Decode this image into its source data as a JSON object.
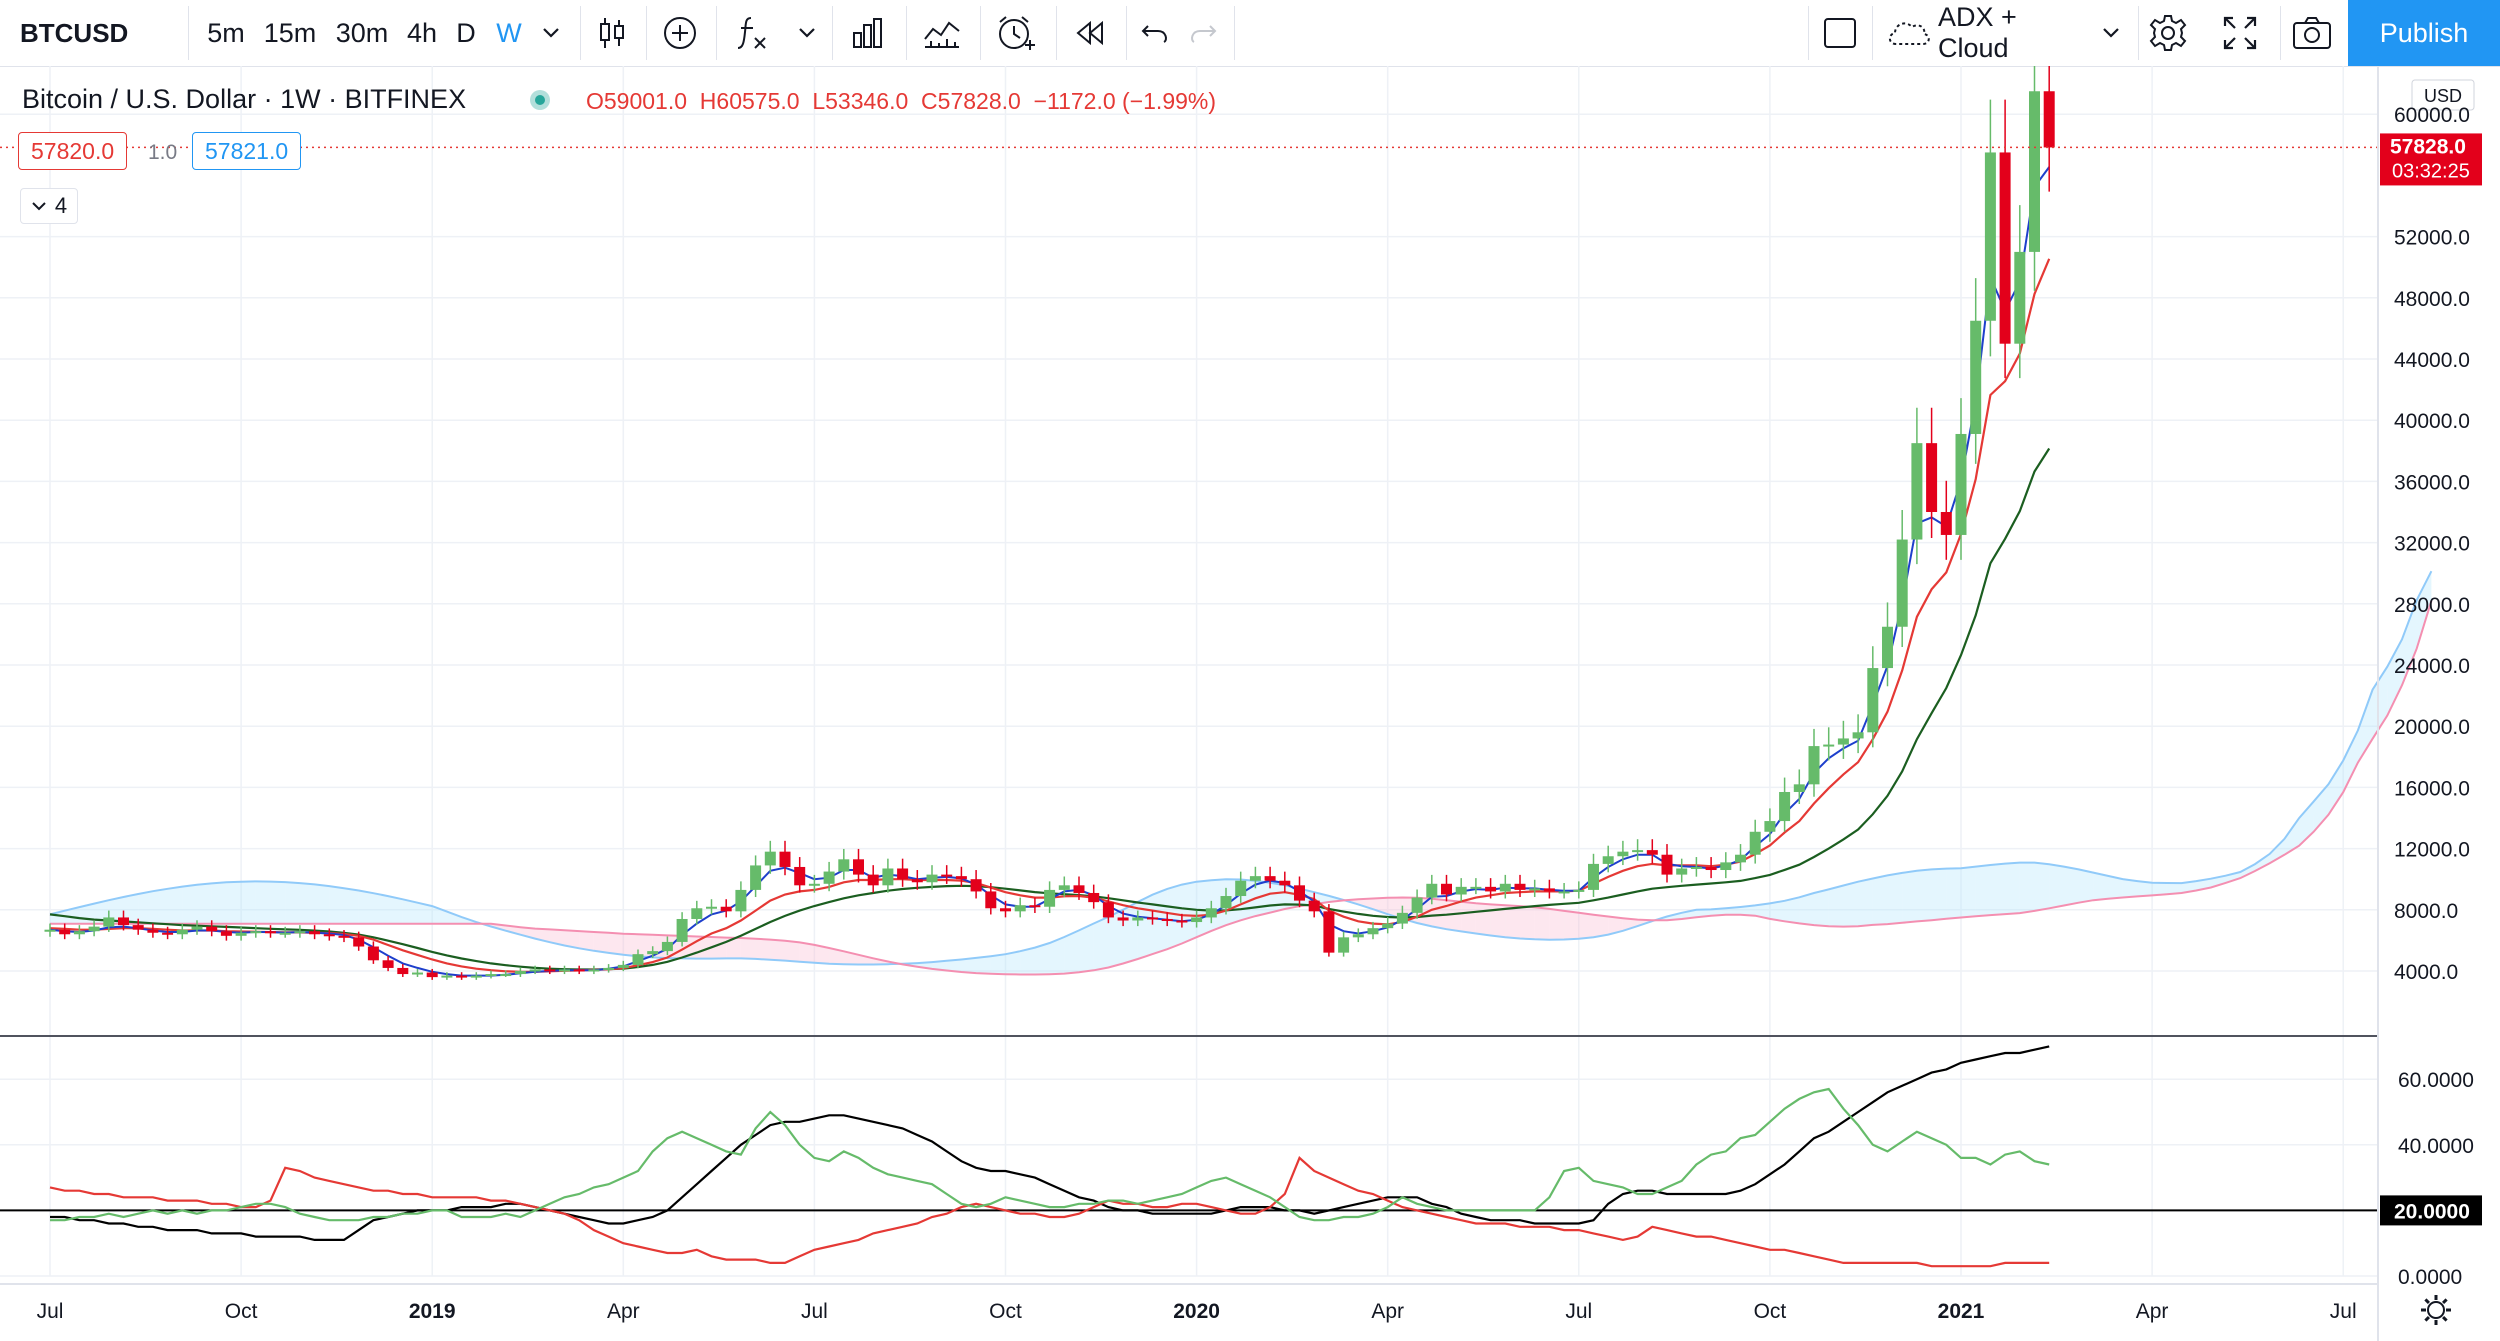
{
  "toolbar": {
    "symbol": "BTCUSD",
    "intervals": [
      "5m",
      "15m",
      "30m",
      "4h",
      "D",
      "W"
    ],
    "active_interval": "W",
    "indicator_label": "ADX + Cloud",
    "publish_label": "Publish",
    "accent": "#2196f3"
  },
  "legend": {
    "title": "Bitcoin / U.S. Dollar · 1W · BITFINEX",
    "ohlc": "O59001.0  H60575.0  L53346.0  C57828.0  −1172.0 (−1.99%)",
    "bid": "57820.0",
    "spread": "1.0",
    "ask": "57821.0",
    "collapsed_count": "4"
  },
  "price_axis": {
    "currency": "USD",
    "last_price": "57828.0",
    "countdown": "03:32:25"
  },
  "adx_axis": {
    "ticks": [
      "60.0000",
      "40.0000",
      "20.0000",
      "0.0000"
    ],
    "level_label": "20.0000"
  },
  "chart_data": [
    {
      "type": "candlestick",
      "title": "Bitcoin / U.S. Dollar · 1W · BITFINEX",
      "ylim": [
        0,
        63000
      ],
      "yticks": [
        4000,
        8000,
        12000,
        16000,
        20000,
        24000,
        28000,
        32000,
        36000,
        40000,
        44000,
        48000,
        52000,
        60000
      ],
      "ytick_labels": [
        "4000.0",
        "8000.0",
        "12000.0",
        "16000.0",
        "20000.0",
        "24000.0",
        "28000.0",
        "32000.0",
        "36000.0",
        "40000.0",
        "44000.0",
        "48000.0",
        "52000.0",
        "60000.0"
      ],
      "x_ticks": [
        {
          "label": "Jul",
          "week": 0
        },
        {
          "label": "Oct",
          "week": 13
        },
        {
          "label": "2019",
          "week": 26,
          "bold": true
        },
        {
          "label": "Apr",
          "week": 39
        },
        {
          "label": "Jul",
          "week": 52
        },
        {
          "label": "Oct",
          "week": 65
        },
        {
          "label": "2020",
          "week": 78,
          "bold": true
        },
        {
          "label": "Apr",
          "week": 91
        },
        {
          "label": "Jul",
          "week": 104
        },
        {
          "label": "Oct",
          "week": 117
        },
        {
          "label": "2021",
          "week": 130,
          "bold": true
        },
        {
          "label": "Apr",
          "week": 143
        },
        {
          "label": "Jul",
          "week": 156
        }
      ],
      "close": [
        6700,
        6400,
        6600,
        6900,
        7500,
        7000,
        6700,
        6500,
        6400,
        6700,
        6900,
        6600,
        6300,
        6500,
        6600,
        6500,
        6500,
        6600,
        6400,
        6300,
        6200,
        5600,
        4700,
        4200,
        3800,
        3900,
        3600,
        3700,
        3600,
        3700,
        3800,
        3800,
        4000,
        4100,
        4000,
        4100,
        4000,
        4100,
        4200,
        4400,
        5100,
        5300,
        5900,
        7400,
        8100,
        8200,
        7900,
        9300,
        10900,
        11800,
        10800,
        9600,
        9700,
        10500,
        11300,
        10300,
        9600,
        10700,
        10000,
        9800,
        10300,
        10200,
        10000,
        9200,
        8100,
        7900,
        8300,
        8200,
        9300,
        9600,
        9100,
        8500,
        7500,
        7300,
        7500,
        7400,
        7300,
        7200,
        7500,
        8100,
        8900,
        9900,
        10200,
        9900,
        9600,
        8600,
        7900,
        5200,
        6200,
        6400,
        6800,
        7100,
        7800,
        8800,
        9700,
        9000,
        9500,
        9500,
        9200,
        9700,
        9300,
        9400,
        9200,
        9200,
        9300,
        11000,
        11500,
        11800,
        11900,
        11600,
        10300,
        10700,
        10800,
        10600,
        11100,
        11600,
        13100,
        13800,
        15700,
        16200,
        18700,
        18800,
        19200,
        19600,
        23800,
        26500,
        32200,
        38500,
        34000,
        32500,
        39100,
        46500,
        57500,
        45000,
        51000,
        61500,
        57828
      ],
      "ma_short": [
        6700,
        6600,
        6550,
        6650,
        6850,
        6900,
        6800,
        6650,
        6550,
        6550,
        6650,
        6650,
        6550,
        6500,
        6550,
        6550,
        6500,
        6550,
        6500,
        6450,
        6350,
        6050,
        5550,
        5000,
        4500,
        4200,
        3950,
        3800,
        3700,
        3700,
        3700,
        3750,
        3850,
        3950,
        4000,
        4050,
        4050,
        4050,
        4150,
        4300,
        4650,
        5000,
        5450,
        6350,
        7100,
        7700,
        7950,
        8550,
        9550,
        10550,
        10750,
        10400,
        10000,
        10100,
        10600,
        10600,
        10100,
        10300,
        10200,
        10000,
        10100,
        10150,
        10050,
        9650,
        8950,
        8350,
        8200,
        8200,
        8700,
        9200,
        9300,
        8950,
        8250,
        7750,
        7550,
        7450,
        7350,
        7250,
        7350,
        7700,
        8300,
        9050,
        9650,
        9900,
        9750,
        9200,
        8550,
        7050,
        6600,
        6450,
        6600,
        6850,
        7350,
        8050,
        8850,
        8900,
        9200,
        9350,
        9300,
        9450,
        9400,
        9400,
        9300,
        9250,
        9250,
        10100,
        10800,
        11300,
        11600,
        11600,
        11000,
        10850,
        10800,
        10700,
        10900,
        11250,
        12150,
        12950,
        14300,
        15250,
        16950,
        17900,
        18550,
        19050,
        21400,
        23950,
        28050,
        33250,
        33650,
        33050,
        36050,
        41250,
        49350,
        47150,
        49050,
        55250,
        56550
      ],
      "ma_mid": [
        6800,
        6750,
        6700,
        6700,
        6750,
        6800,
        6800,
        6750,
        6700,
        6650,
        6650,
        6650,
        6600,
        6580,
        6560,
        6540,
        6520,
        6520,
        6500,
        6480,
        6420,
        6300,
        6050,
        5700,
        5350,
        5050,
        4750,
        4500,
        4300,
        4150,
        4050,
        3980,
        3950,
        3950,
        3980,
        4010,
        4040,
        4070,
        4110,
        4180,
        4380,
        4580,
        4880,
        5400,
        5950,
        6450,
        6800,
        7300,
        7950,
        8600,
        9000,
        9200,
        9300,
        9500,
        9800,
        9950,
        9950,
        10000,
        10000,
        9950,
        9950,
        9950,
        9900,
        9750,
        9450,
        9150,
        8950,
        8800,
        8800,
        8880,
        8900,
        8800,
        8550,
        8300,
        8100,
        7950,
        7800,
        7650,
        7600,
        7680,
        7950,
        8350,
        8750,
        9050,
        9150,
        8980,
        8700,
        7950,
        7550,
        7250,
        7100,
        7050,
        7200,
        7550,
        8000,
        8250,
        8550,
        8800,
        8950,
        9100,
        9150,
        9200,
        9200,
        9200,
        9250,
        9700,
        10150,
        10550,
        10850,
        11000,
        10900,
        10900,
        10900,
        10850,
        10950,
        11150,
        11650,
        12200,
        13050,
        13800,
        14950,
        15950,
        16850,
        17650,
        19150,
        20950,
        23650,
        27150,
        28950,
        30050,
        32550,
        36150,
        41650,
        42550,
        44350,
        48250,
        50550
      ],
      "ma_long": [
        7700,
        7580,
        7460,
        7360,
        7300,
        7240,
        7180,
        7120,
        7060,
        7000,
        6960,
        6920,
        6880,
        6840,
        6800,
        6760,
        6720,
        6690,
        6640,
        6580,
        6500,
        6380,
        6200,
        5980,
        5750,
        5500,
        5250,
        5020,
        4820,
        4650,
        4500,
        4380,
        4280,
        4200,
        4150,
        4120,
        4100,
        4100,
        4120,
        4160,
        4260,
        4400,
        4600,
        4880,
        5200,
        5550,
        5900,
        6300,
        6750,
        7200,
        7600,
        7950,
        8250,
        8500,
        8750,
        8950,
        9100,
        9250,
        9360,
        9440,
        9500,
        9550,
        9570,
        9550,
        9480,
        9380,
        9270,
        9160,
        9080,
        9020,
        8960,
        8880,
        8760,
        8620,
        8480,
        8350,
        8220,
        8100,
        8000,
        7950,
        7960,
        8040,
        8160,
        8280,
        8350,
        8340,
        8280,
        8050,
        7880,
        7730,
        7610,
        7530,
        7500,
        7530,
        7620,
        7680,
        7770,
        7870,
        7960,
        8060,
        8150,
        8240,
        8320,
        8390,
        8460,
        8620,
        8800,
        9000,
        9200,
        9380,
        9480,
        9570,
        9650,
        9720,
        9800,
        9890,
        10070,
        10280,
        10610,
        10950,
        11450,
        12000,
        12600,
        13250,
        14250,
        15450,
        17050,
        19150,
        20850,
        22500,
        24650,
        27250,
        30650,
        32250,
        34050,
        36650,
        38150
      ]
    },
    {
      "type": "line",
      "title": "ADX",
      "ylim": [
        0,
        70
      ],
      "yticks": [
        0,
        20,
        40,
        60
      ],
      "level": 20,
      "series": [
        {
          "name": "",
          "color": "#000000",
          "values": [
            18,
            18,
            17,
            17,
            16,
            16,
            15,
            15,
            14,
            14,
            14,
            13,
            13,
            13,
            12,
            12,
            12,
            12,
            11,
            11,
            11,
            14,
            17,
            18,
            19,
            20,
            20,
            20,
            21,
            21,
            21,
            22,
            22,
            21,
            20,
            19,
            18,
            17,
            16,
            16,
            17,
            18,
            20,
            24,
            28,
            32,
            36,
            40,
            43,
            46,
            47,
            47,
            48,
            49,
            49,
            48,
            47,
            46,
            45,
            43,
            41,
            38,
            35,
            33,
            32,
            32,
            31,
            30,
            28,
            26,
            24,
            23,
            21,
            20,
            20,
            19,
            19,
            19,
            19,
            19,
            20,
            21,
            21,
            21,
            20,
            20,
            19,
            20,
            21,
            22,
            23,
            24,
            24,
            24,
            22,
            21,
            19,
            18,
            17,
            17,
            17,
            16,
            16,
            16,
            16,
            17,
            22,
            25,
            26,
            26,
            25,
            25,
            25,
            25,
            25,
            26,
            28,
            31,
            34,
            38,
            42,
            44,
            47,
            50,
            53,
            56,
            58,
            60,
            62,
            63,
            65,
            66,
            67,
            68,
            68,
            69,
            70
          ]
        },
        {
          "name": "",
          "color": "#e53935",
          "values": [
            27,
            26,
            26,
            25,
            25,
            24,
            24,
            24,
            23,
            23,
            23,
            22,
            22,
            21,
            21,
            23,
            33,
            32,
            30,
            29,
            28,
            27,
            26,
            26,
            25,
            25,
            24,
            24,
            24,
            24,
            23,
            23,
            22,
            21,
            20,
            19,
            17,
            14,
            12,
            10,
            9,
            8,
            7,
            7,
            8,
            6,
            5,
            5,
            5,
            4,
            4,
            6,
            8,
            9,
            10,
            11,
            13,
            14,
            15,
            16,
            18,
            19,
            21,
            22,
            21,
            20,
            19,
            19,
            18,
            18,
            19,
            21,
            23,
            22,
            22,
            21,
            21,
            22,
            22,
            21,
            20,
            19,
            19,
            21,
            25,
            36,
            32,
            30,
            28,
            26,
            25,
            23,
            21,
            20,
            19,
            18,
            17,
            16,
            16,
            16,
            15,
            15,
            15,
            14,
            14,
            13,
            12,
            11,
            12,
            15,
            14,
            13,
            12,
            12,
            11,
            10,
            9,
            8,
            8,
            7,
            6,
            5,
            4,
            4,
            4,
            4,
            4,
            4,
            3,
            3,
            3,
            3,
            3,
            4,
            4,
            4,
            4
          ]
        },
        {
          "name": "",
          "color": "#66bb6a",
          "values": [
            17,
            17,
            18,
            18,
            19,
            18,
            19,
            20,
            19,
            20,
            19,
            20,
            20,
            21,
            22,
            22,
            21,
            19,
            18,
            17,
            17,
            17,
            18,
            18,
            19,
            19,
            20,
            20,
            18,
            18,
            18,
            19,
            18,
            20,
            22,
            24,
            25,
            27,
            28,
            30,
            32,
            38,
            42,
            44,
            42,
            40,
            38,
            37,
            45,
            50,
            46,
            40,
            36,
            35,
            38,
            36,
            33,
            31,
            30,
            29,
            28,
            25,
            22,
            21,
            22,
            24,
            23,
            22,
            21,
            21,
            22,
            22,
            23,
            23,
            22,
            23,
            24,
            25,
            27,
            29,
            30,
            28,
            26,
            24,
            21,
            18,
            17,
            17,
            18,
            18,
            19,
            21,
            24,
            22,
            21,
            20,
            20,
            20,
            20,
            20,
            20,
            20,
            24,
            32,
            33,
            29,
            28,
            27,
            25,
            25,
            27,
            29,
            34,
            37,
            38,
            42,
            43,
            47,
            51,
            54,
            56,
            57,
            51,
            46,
            40,
            38,
            41,
            44,
            42,
            40,
            36,
            36,
            34,
            37,
            38,
            35,
            34
          ]
        }
      ]
    }
  ]
}
